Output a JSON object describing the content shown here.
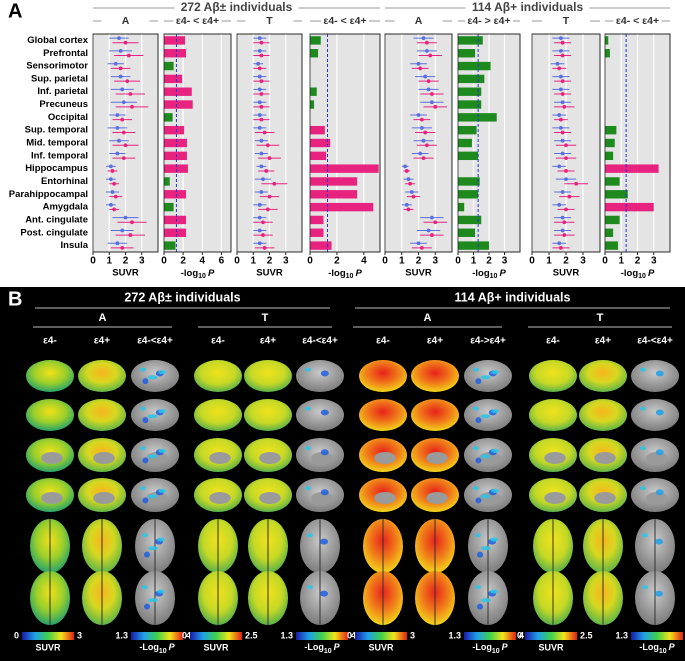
{
  "figure": {
    "panel_a": "A",
    "groups": [
      "272 Aβ± individuals",
      "114 Aβ+ individuals"
    ]
  },
  "chart_data": [
    {
      "type": "forest",
      "title": "A",
      "xlabel": "SUVR",
      "xlim": [
        0,
        4
      ],
      "xticks": [
        0,
        1,
        2,
        3
      ],
      "categories": [
        "Global cortex",
        "Prefrontal",
        "Sensorimotor",
        "Sup. parietal",
        "Inf. parietal",
        "Precuneus",
        "Occipital",
        "Sup. temporal",
        "Mid. temporal",
        "Inf. temporal",
        "Hippocampus",
        "Entorhinal",
        "Parahippocampal",
        "Amygdala",
        "Ant. cingulate",
        "Post. cingulate",
        "Insula"
      ],
      "series": [
        {
          "color": "#5a6fe0",
          "values": [
            1.6,
            1.7,
            1.4,
            1.7,
            1.8,
            1.9,
            1.5,
            1.5,
            1.6,
            1.5,
            1.1,
            1.1,
            1.2,
            1.1,
            2.0,
            1.8,
            1.5
          ],
          "errors": [
            0.6,
            0.7,
            0.5,
            0.6,
            0.7,
            0.8,
            0.5,
            0.6,
            0.6,
            0.5,
            0.3,
            0.3,
            0.4,
            0.3,
            0.8,
            0.7,
            0.6
          ]
        },
        {
          "color": "#e8237f",
          "values": [
            2.0,
            2.2,
            1.7,
            2.1,
            2.3,
            2.4,
            1.8,
            1.9,
            2.0,
            1.9,
            1.2,
            1.3,
            1.4,
            1.3,
            2.4,
            2.3,
            1.8
          ],
          "errors": [
            0.8,
            0.9,
            0.6,
            0.8,
            0.9,
            1.0,
            0.6,
            0.7,
            0.8,
            0.7,
            0.3,
            0.3,
            0.4,
            0.3,
            0.9,
            0.9,
            0.7
          ]
        }
      ]
    },
    {
      "type": "bar",
      "title": "ε4- < ε4+",
      "xlabel_parts": [
        "-log",
        "10",
        "P"
      ],
      "xlim": [
        0,
        7
      ],
      "xticks": [
        0,
        2,
        4,
        6
      ],
      "refline": 1.3,
      "values": [
        2.2,
        2.3,
        1.0,
        1.9,
        2.9,
        3.0,
        0.9,
        2.1,
        2.4,
        2.4,
        2.5,
        0.6,
        2.3,
        1.0,
        2.3,
        2.3,
        1.2
      ],
      "colors": [
        "#e8237f",
        "#e8237f",
        "#1e8a1e",
        "#e8237f",
        "#e8237f",
        "#e8237f",
        "#1e8a1e",
        "#e8237f",
        "#e8237f",
        "#e8237f",
        "#e8237f",
        "#1e8a1e",
        "#e8237f",
        "#1e8a1e",
        "#e8237f",
        "#e8237f",
        "#1e8a1e"
      ]
    },
    {
      "type": "forest",
      "title": "T",
      "xlabel": "SUVR",
      "xlim": [
        0,
        4
      ],
      "xticks": [
        0,
        1,
        2,
        3
      ],
      "series": [
        {
          "color": "#5a6fe0",
          "values": [
            1.4,
            1.4,
            1.3,
            1.4,
            1.4,
            1.4,
            1.4,
            1.4,
            1.5,
            1.5,
            1.5,
            1.6,
            1.5,
            1.4,
            1.4,
            1.4,
            1.4
          ],
          "errors": [
            0.4,
            0.4,
            0.3,
            0.4,
            0.4,
            0.4,
            0.4,
            0.4,
            0.4,
            0.4,
            0.3,
            0.5,
            0.4,
            0.4,
            0.4,
            0.4,
            0.4
          ]
        },
        {
          "color": "#e8237f",
          "values": [
            1.5,
            1.5,
            1.4,
            1.5,
            1.5,
            1.5,
            1.5,
            1.7,
            1.9,
            2.0,
            1.8,
            2.3,
            2.0,
            1.9,
            1.6,
            1.6,
            1.7
          ],
          "errors": [
            0.5,
            0.5,
            0.4,
            0.5,
            0.5,
            0.5,
            0.5,
            0.6,
            0.7,
            0.7,
            0.5,
            0.8,
            0.6,
            0.6,
            0.6,
            0.6,
            0.6
          ]
        }
      ]
    },
    {
      "type": "bar",
      "title": "ε4- < ε4+",
      "xlabel_parts": [
        "-log",
        "10",
        "P"
      ],
      "xlim": [
        0,
        5.2
      ],
      "xticks": [
        0,
        2,
        4
      ],
      "refline": 1.3,
      "values": [
        0.8,
        0.6,
        0,
        0,
        0.5,
        0.3,
        0,
        1.1,
        1.5,
        1.2,
        5.1,
        3.5,
        3.5,
        4.7,
        1.0,
        1.0,
        1.6
      ],
      "colors": [
        "#1e8a1e",
        "#1e8a1e",
        "#1e8a1e",
        "#1e8a1e",
        "#1e8a1e",
        "#1e8a1e",
        "#1e8a1e",
        "#e8237f",
        "#e8237f",
        "#e8237f",
        "#e8237f",
        "#e8237f",
        "#e8237f",
        "#e8237f",
        "#e8237f",
        "#e8237f",
        "#e8237f"
      ]
    },
    {
      "type": "forest",
      "title": "A",
      "xlabel": "SUVR",
      "xlim": [
        0,
        4
      ],
      "xticks": [
        0,
        1,
        2,
        3
      ],
      "series": [
        {
          "color": "#5a6fe0",
          "values": [
            2.3,
            2.5,
            2.0,
            2.4,
            2.6,
            2.8,
            2.0,
            2.2,
            2.3,
            2.1,
            1.2,
            1.4,
            1.6,
            1.3,
            2.8,
            2.6,
            2.0
          ],
          "errors": [
            0.6,
            0.6,
            0.5,
            0.6,
            0.6,
            0.7,
            0.5,
            0.6,
            0.6,
            0.5,
            0.2,
            0.3,
            0.4,
            0.3,
            0.7,
            0.7,
            0.5
          ]
        },
        {
          "color": "#e8237f",
          "values": [
            2.5,
            2.7,
            2.1,
            2.6,
            2.8,
            3.0,
            2.2,
            2.4,
            2.5,
            2.3,
            1.3,
            1.5,
            1.7,
            1.4,
            3.0,
            2.8,
            2.2
          ],
          "errors": [
            0.6,
            0.7,
            0.5,
            0.6,
            0.7,
            0.7,
            0.5,
            0.6,
            0.6,
            0.6,
            0.2,
            0.3,
            0.4,
            0.3,
            0.7,
            0.7,
            0.6
          ]
        }
      ]
    },
    {
      "type": "bar",
      "title": "ε4- > ε4+",
      "xlabel_parts": [
        "-log",
        "10",
        "P"
      ],
      "xlim": [
        0,
        4
      ],
      "xticks": [
        0,
        1,
        2,
        3
      ],
      "refline": 1.3,
      "values": [
        1.6,
        1.1,
        2.1,
        1.7,
        1.5,
        1.5,
        2.5,
        1.2,
        0.9,
        1.3,
        0,
        1.4,
        1.3,
        0.4,
        1.5,
        1.1,
        2.0
      ],
      "colors": [
        "#1e8a1e",
        "#1e8a1e",
        "#1e8a1e",
        "#1e8a1e",
        "#1e8a1e",
        "#1e8a1e",
        "#1e8a1e",
        "#1e8a1e",
        "#1e8a1e",
        "#1e8a1e",
        "#1e8a1e",
        "#1e8a1e",
        "#1e8a1e",
        "#1e8a1e",
        "#1e8a1e",
        "#1e8a1e",
        "#1e8a1e"
      ]
    },
    {
      "type": "forest",
      "title": "T",
      "xlabel": "SUVR",
      "xlim": [
        0,
        4
      ],
      "xticks": [
        0,
        1,
        2,
        3
      ],
      "series": [
        {
          "color": "#5a6fe0",
          "values": [
            1.7,
            1.7,
            1.5,
            1.7,
            1.7,
            1.8,
            1.6,
            1.7,
            1.8,
            1.8,
            1.6,
            2.0,
            1.8,
            1.6,
            1.8,
            1.8,
            1.6
          ],
          "errors": [
            0.5,
            0.5,
            0.4,
            0.5,
            0.5,
            0.5,
            0.4,
            0.5,
            0.5,
            0.5,
            0.4,
            0.6,
            0.5,
            0.4,
            0.5,
            0.5,
            0.4
          ]
        },
        {
          "color": "#e8237f",
          "values": [
            1.8,
            1.8,
            1.6,
            1.8,
            1.8,
            1.9,
            1.7,
            1.8,
            2.0,
            2.0,
            2.0,
            2.6,
            2.2,
            2.0,
            1.9,
            1.9,
            1.7
          ],
          "errors": [
            0.5,
            0.5,
            0.4,
            0.5,
            0.5,
            0.6,
            0.4,
            0.5,
            0.6,
            0.6,
            0.5,
            0.7,
            0.6,
            0.5,
            0.6,
            0.6,
            0.5
          ]
        }
      ]
    },
    {
      "type": "bar",
      "title": "ε4- < ε4+",
      "xlabel_parts": [
        "-log",
        "10",
        "P"
      ],
      "xlim": [
        0,
        4
      ],
      "xticks": [
        0,
        1,
        2,
        3
      ],
      "refline": 1.3,
      "values": [
        0.2,
        0.3,
        0,
        0,
        0,
        0,
        0,
        0.7,
        0.6,
        0.5,
        3.3,
        0.9,
        1.4,
        3.0,
        0.9,
        0.5,
        0.8
      ],
      "colors": [
        "#1e8a1e",
        "#1e8a1e",
        "#1e8a1e",
        "#1e8a1e",
        "#1e8a1e",
        "#1e8a1e",
        "#1e8a1e",
        "#1e8a1e",
        "#1e8a1e",
        "#1e8a1e",
        "#e8237f",
        "#1e8a1e",
        "#1e8a1e",
        "#e8237f",
        "#1e8a1e",
        "#1e8a1e",
        "#1e8a1e"
      ]
    }
  ],
  "panel_b": {
    "label": "B",
    "groups": [
      "272 Aβ± individuals",
      "114 Aβ+ individuals"
    ],
    "modalities": [
      "A",
      "T",
      "A",
      "T"
    ],
    "columns": [
      [
        "ε4-",
        "ε4+",
        "ε4-<ε4+"
      ],
      [
        "ε4-",
        "ε4+",
        "ε4-<ε4+"
      ],
      [
        "ε4-",
        "ε4+",
        "ε4->ε4+"
      ],
      [
        "ε4-",
        "ε4+",
        "ε4-<ε4+"
      ]
    ],
    "colorbars": [
      {
        "ticks": [
          0,
          3
        ],
        "label": "SUVR",
        "p_ticks": [
          1.3,
          4
        ],
        "p_label_parts": [
          "-Log",
          "10",
          "P"
        ]
      },
      {
        "ticks": [
          0,
          2.5
        ],
        "label": "SUVR",
        "p_ticks": [
          1.3,
          4
        ],
        "p_label_parts": [
          "-Log",
          "10",
          "P"
        ]
      },
      {
        "ticks": [
          0,
          3
        ],
        "label": "SUVR",
        "p_ticks": [
          1.3,
          4
        ],
        "p_label_parts": [
          "-Log",
          "10",
          "P"
        ]
      },
      {
        "ticks": [
          0,
          2.5
        ],
        "label": "SUVR",
        "p_ticks": [
          1.3,
          4
        ],
        "p_label_parts": [
          "-Log",
          "10",
          "P"
        ]
      }
    ]
  }
}
